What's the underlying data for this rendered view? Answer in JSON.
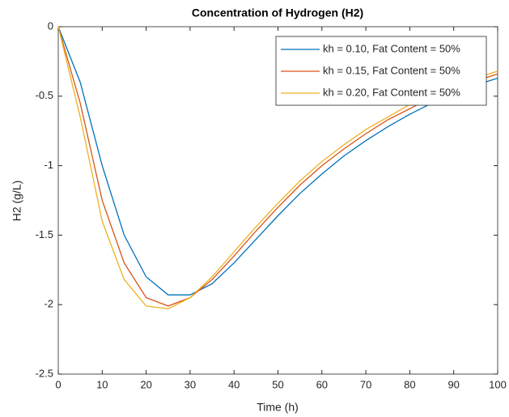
{
  "chart_data": {
    "type": "line",
    "title": "Concentration of Hydrogen (H2)",
    "xlabel": "Time (h)",
    "ylabel": "H2 (g/L)",
    "x": [
      0,
      5,
      10,
      15,
      20,
      25,
      30,
      35,
      40,
      45,
      50,
      55,
      60,
      65,
      70,
      75,
      80,
      85,
      90,
      95,
      100
    ],
    "series": [
      {
        "name": "kh = 0.10, Fat Content = 50%",
        "color": "#0072BD",
        "values": [
          0,
          -0.4,
          -1.0,
          -1.5,
          -1.8,
          -1.93,
          -1.93,
          -1.85,
          -1.7,
          -1.53,
          -1.36,
          -1.2,
          -1.06,
          -0.93,
          -0.82,
          -0.72,
          -0.63,
          -0.55,
          -0.48,
          -0.42,
          -0.37
        ]
      },
      {
        "name": "kh = 0.15, Fat Content = 50%",
        "color": "#D95319",
        "values": [
          0,
          -0.55,
          -1.25,
          -1.7,
          -1.95,
          -2.01,
          -1.95,
          -1.82,
          -1.65,
          -1.47,
          -1.3,
          -1.14,
          -1.0,
          -0.88,
          -0.77,
          -0.67,
          -0.59,
          -0.51,
          -0.45,
          -0.39,
          -0.34
        ]
      },
      {
        "name": "kh = 0.20, Fat Content = 50%",
        "color": "#EDB120",
        "values": [
          0,
          -0.65,
          -1.4,
          -1.82,
          -2.01,
          -2.03,
          -1.95,
          -1.8,
          -1.62,
          -1.44,
          -1.27,
          -1.11,
          -0.97,
          -0.85,
          -0.74,
          -0.65,
          -0.56,
          -0.49,
          -0.43,
          -0.37,
          -0.32
        ]
      }
    ],
    "xlim": [
      0,
      100
    ],
    "xticks": [
      0,
      10,
      20,
      30,
      40,
      50,
      60,
      70,
      80,
      90,
      100
    ],
    "ylim": [
      -2.5,
      0
    ],
    "yticks": [
      -2.5,
      -2,
      -1.5,
      -1,
      -0.5,
      0
    ],
    "legend": "upper right"
  }
}
